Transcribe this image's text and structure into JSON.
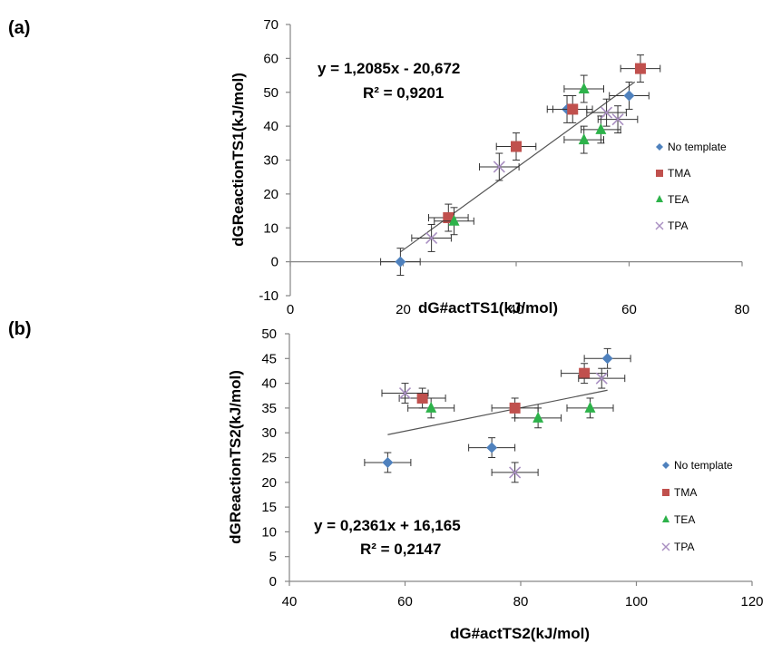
{
  "chart_data": [
    {
      "panel_label": "(a)",
      "type": "scatter",
      "xlabel": "dG#actTS1(kJ/mol)",
      "ylabel": "dGReactionTS1(kJ/mol)",
      "xlim": [
        0,
        80
      ],
      "ylim": [
        -10,
        70
      ],
      "xticks": [
        0,
        20,
        40,
        60,
        80
      ],
      "yticks": [
        -10,
        0,
        10,
        20,
        30,
        40,
        50,
        60,
        70
      ],
      "grid": false,
      "legend_position": "right",
      "trendline": {
        "slope": 1.2085,
        "intercept": -20.672,
        "x_range": [
          19.5,
          61
        ],
        "equation": "y = 1,2085x - 20,672",
        "r2": "R² = 0,9201"
      },
      "series": [
        {
          "name": "No template",
          "marker": "diamond",
          "color": "#4f81bd",
          "xerr": 3.5,
          "yerr": 4,
          "x": [
            19.5,
            49,
            60
          ],
          "y": [
            0,
            45,
            49
          ]
        },
        {
          "name": "TMA",
          "marker": "square",
          "color": "#c0504d",
          "xerr": 3.5,
          "yerr": 4,
          "x": [
            28,
            40,
            50,
            62
          ],
          "y": [
            13,
            34,
            45,
            57
          ]
        },
        {
          "name": "TEA",
          "marker": "triangle",
          "color": "#2db24a",
          "xerr": 3.5,
          "yerr": 4,
          "x": [
            29,
            52,
            52,
            55
          ],
          "y": [
            12,
            36,
            51,
            39
          ]
        },
        {
          "name": "TPA",
          "marker": "x",
          "color": "#a98fc2",
          "xerr": 3.5,
          "yerr": 4,
          "x": [
            25,
            37,
            56,
            58
          ],
          "y": [
            7,
            28,
            44,
            42
          ]
        }
      ]
    },
    {
      "panel_label": "(b)",
      "type": "scatter",
      "xlabel": "dG#actTS2(kJ/mol)",
      "ylabel": "dGReactionTS2(kJ/mol)",
      "xlim": [
        40,
        120
      ],
      "ylim": [
        0,
        50
      ],
      "xticks": [
        40,
        60,
        80,
        100,
        120
      ],
      "yticks": [
        0,
        5,
        10,
        15,
        20,
        25,
        30,
        35,
        40,
        45,
        50
      ],
      "grid": false,
      "legend_position": "right",
      "trendline": {
        "slope": 0.2361,
        "intercept": 16.165,
        "x_range": [
          57,
          95
        ],
        "equation": "y = 0,2361x + 16,165",
        "r2": "R² = 0,2147"
      },
      "series": [
        {
          "name": "No template",
          "marker": "diamond",
          "color": "#4f81bd",
          "xerr": 4,
          "yerr": 2,
          "x": [
            57,
            75,
            95
          ],
          "y": [
            24,
            27,
            45
          ]
        },
        {
          "name": "TMA",
          "marker": "square",
          "color": "#c0504d",
          "xerr": 4,
          "yerr": 2,
          "x": [
            63,
            79,
            91
          ],
          "y": [
            37,
            35,
            42
          ]
        },
        {
          "name": "TEA",
          "marker": "triangle",
          "color": "#2db24a",
          "xerr": 4,
          "yerr": 2,
          "x": [
            64.5,
            83,
            92
          ],
          "y": [
            35,
            33,
            35
          ]
        },
        {
          "name": "TPA",
          "marker": "x",
          "color": "#a98fc2",
          "xerr": 4,
          "yerr": 2,
          "x": [
            60,
            79,
            94
          ],
          "y": [
            38,
            22,
            41
          ]
        }
      ]
    }
  ]
}
